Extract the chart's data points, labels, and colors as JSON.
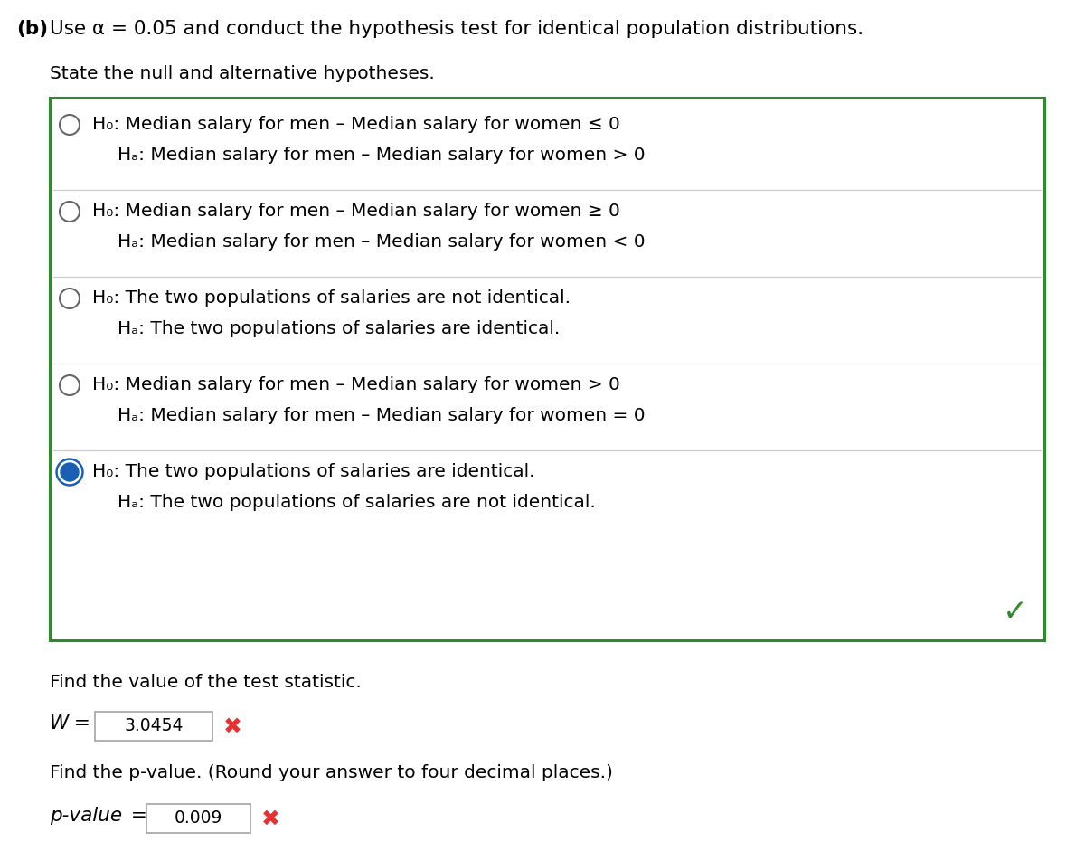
{
  "title_b": "(b)",
  "title_rest": "Use α = 0.05 and conduct the hypothesis test for identical population distributions.",
  "subtitle": "State the null and alternative hypotheses.",
  "options": [
    {
      "h0": "H₀: Median salary for men – Median salary for women ≤ 0",
      "ha": "Hₐ: Median salary for men – Median salary for women > 0",
      "selected": false
    },
    {
      "h0": "H₀: Median salary for men – Median salary for women ≥ 0",
      "ha": "Hₐ: Median salary for men – Median salary for women < 0",
      "selected": false
    },
    {
      "h0": "H₀: The two populations of salaries are not identical.",
      "ha": "Hₐ: The two populations of salaries are identical.",
      "selected": false
    },
    {
      "h0": "H₀: Median salary for men – Median salary for women > 0",
      "ha": "Hₐ: Median salary for men – Median salary for women = 0",
      "selected": false
    },
    {
      "h0": "H₀: The two populations of salaries are identical.",
      "ha": "Hₐ: The two populations of salaries are not identical.",
      "selected": true
    }
  ],
  "box_color": "#2d8a2d",
  "selected_fill": "#1a5fb4",
  "selected_ring": "#ffffff",
  "unselected_stroke": "#666666",
  "checkmark_color": "#2d8a2d",
  "test_stat_label": "Find the value of the test statistic.",
  "test_stat_eq": "W",
  "test_stat_val": "3.0454",
  "pvalue_label": "Find the p-value. (Round your answer to four decimal places.)",
  "pvalue_eq": "p-value",
  "pvalue_val": "0.009",
  "wrong_color": "#e83030",
  "bg_color": "#ffffff",
  "font_size_title": 15.5,
  "font_size_body": 14.5,
  "font_size_small": 13.5
}
